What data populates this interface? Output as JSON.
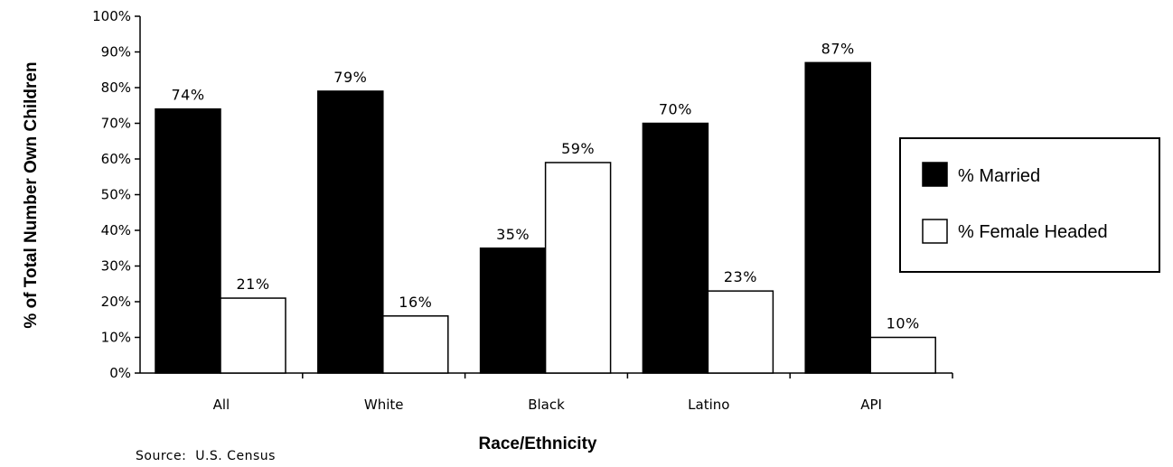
{
  "chart_data": {
    "type": "bar",
    "title": "",
    "xlabel": "Race/Ethnicity",
    "ylabel": "% of Total Number Own Children",
    "ylim": [
      0,
      100
    ],
    "yticks": [
      "0%",
      "10%",
      "20%",
      "30%",
      "40%",
      "50%",
      "60%",
      "70%",
      "80%",
      "90%",
      "100%"
    ],
    "categories": [
      "All",
      "White",
      "Black",
      "Latino",
      "API"
    ],
    "series": [
      {
        "name": "% Married",
        "color": "#000000",
        "values": [
          74,
          79,
          35,
          70,
          87
        ],
        "labels": [
          "74%",
          "79%",
          "35%",
          "70%",
          "87%"
        ]
      },
      {
        "name": "% Female Headed",
        "color": "#ffffff",
        "values": [
          21,
          16,
          59,
          23,
          10
        ],
        "labels": [
          "21%",
          "16%",
          "59%",
          "23%",
          "10%"
        ]
      }
    ],
    "legend_position": "right",
    "grid": false,
    "source": "Source:  U.S. Census"
  }
}
